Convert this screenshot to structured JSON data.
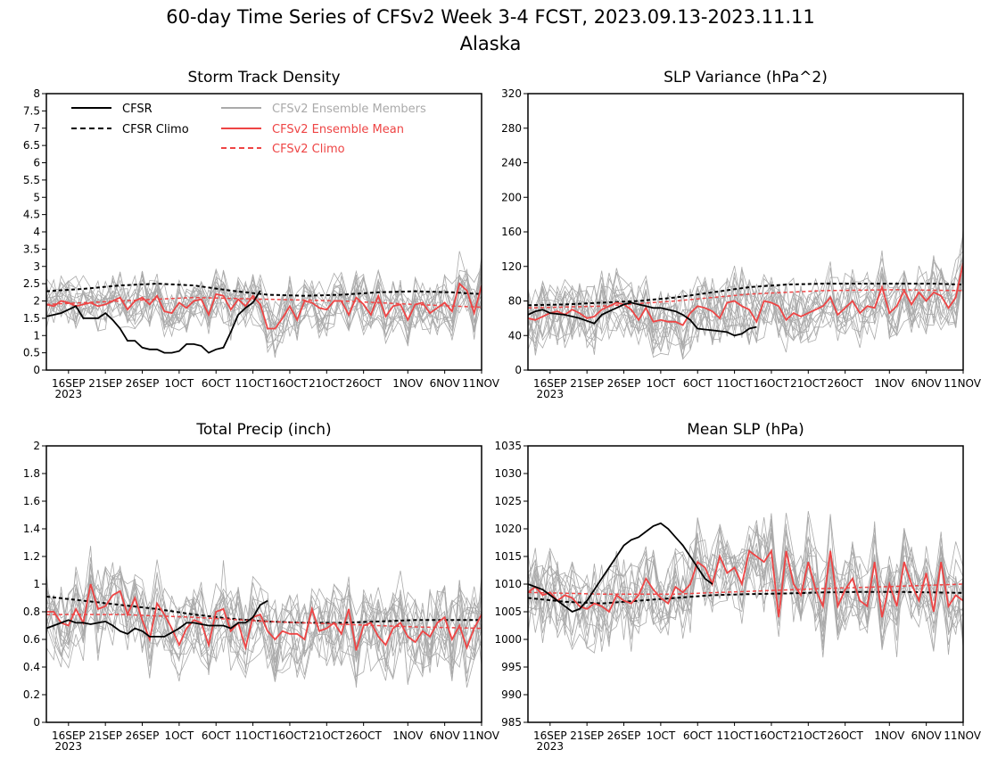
{
  "figure": {
    "title_line1": "60-day Time Series of CFSv2 Week 3-4 FCST, 2023.09.13-2023.11.11",
    "title_line2": "Alaska"
  },
  "colors": {
    "cfsr": "#000000",
    "ensemble_member": "#aaaaaa",
    "ensemble_mean": "#ee4444",
    "cfsv2_climo": "#ee4444"
  },
  "legend": {
    "cfsr": "CFSR",
    "cfsr_climo": "CFSR Climo",
    "members": "CFSv2 Ensemble Members",
    "mean": "CFSv2 Ensemble Mean",
    "cfsv2_climo": "CFSv2 Climo"
  },
  "x_ticks": [
    "16SEP",
    "21SEP",
    "26SEP",
    "1OCT",
    "6OCT",
    "11OCT",
    "16OCT",
    "21OCT",
    "26OCT",
    "1NOV",
    "6NOV",
    "11NOV"
  ],
  "x_tick_year": "2023",
  "chart_data": [
    {
      "type": "line",
      "title": "Storm Track Density",
      "x_days": [
        0,
        59
      ],
      "ylim": [
        0,
        8
      ],
      "yticks": [
        "0",
        "0.5",
        "1",
        "1.5",
        "2",
        "2.5",
        "3",
        "3.5",
        "4",
        "4.5",
        "5",
        "5.5",
        "6",
        "6.5",
        "7",
        "7.5",
        "8"
      ],
      "show_legend": true,
      "cfsr": [
        [
          0,
          1.55
        ],
        [
          1,
          1.6
        ],
        [
          2,
          1.65
        ],
        [
          3,
          1.75
        ],
        [
          4,
          1.85
        ],
        [
          5,
          1.5
        ],
        [
          6,
          1.5
        ],
        [
          7,
          1.5
        ],
        [
          8,
          1.65
        ],
        [
          9,
          1.45
        ],
        [
          10,
          1.2
        ],
        [
          11,
          0.85
        ],
        [
          12,
          0.85
        ],
        [
          13,
          0.65
        ],
        [
          14,
          0.6
        ],
        [
          15,
          0.6
        ],
        [
          16,
          0.5
        ],
        [
          17,
          0.5
        ],
        [
          18,
          0.55
        ],
        [
          19,
          0.75
        ],
        [
          20,
          0.75
        ],
        [
          21,
          0.7
        ],
        [
          22,
          0.5
        ],
        [
          23,
          0.6
        ],
        [
          24,
          0.65
        ],
        [
          25,
          1.1
        ],
        [
          26,
          1.6
        ],
        [
          27,
          1.8
        ],
        [
          28,
          1.95
        ],
        [
          29,
          2.3
        ]
      ],
      "cfsr_climo": [
        [
          0,
          2.28
        ],
        [
          5,
          2.35
        ],
        [
          10,
          2.45
        ],
        [
          15,
          2.5
        ],
        [
          20,
          2.45
        ],
        [
          25,
          2.3
        ],
        [
          30,
          2.18
        ],
        [
          35,
          2.15
        ],
        [
          40,
          2.18
        ],
        [
          45,
          2.25
        ],
        [
          50,
          2.28
        ],
        [
          55,
          2.25
        ],
        [
          59,
          2.2
        ]
      ],
      "cfsv2_climo": [
        [
          0,
          1.9
        ],
        [
          10,
          2.0
        ],
        [
          20,
          2.1
        ],
        [
          30,
          2.05
        ],
        [
          40,
          2.0
        ],
        [
          50,
          1.9
        ],
        [
          59,
          1.82
        ]
      ],
      "ensemble_mean": [
        1.9,
        1.85,
        2.0,
        1.95,
        1.85,
        1.9,
        1.95,
        1.85,
        1.9,
        2.0,
        2.1,
        1.75,
        2.0,
        2.1,
        1.9,
        2.15,
        1.7,
        1.65,
        1.95,
        1.8,
        2.0,
        2.05,
        1.6,
        2.2,
        2.15,
        1.75,
        2.05,
        1.85,
        2.15,
        1.9,
        1.2,
        1.2,
        1.5,
        1.85,
        1.45,
        2.0,
        1.95,
        1.8,
        1.75,
        2.0,
        2.0,
        1.6,
        2.1,
        1.9,
        1.6,
        2.15,
        1.55,
        1.85,
        1.9,
        1.45,
        1.9,
        1.95,
        1.65,
        1.8,
        1.95,
        1.7,
        2.5,
        2.3,
        1.65,
        2.45
      ],
      "member_spread": 0.7
    },
    {
      "type": "line",
      "title": "SLP Variance (hPa^2)",
      "x_days": [
        0,
        59
      ],
      "ylim": [
        0,
        320
      ],
      "yticks": [
        "0",
        "40",
        "80",
        "120",
        "160",
        "200",
        "240",
        "280",
        "320"
      ],
      "show_legend": false,
      "cfsr": [
        [
          0,
          64
        ],
        [
          1,
          68
        ],
        [
          2,
          70
        ],
        [
          3,
          66
        ],
        [
          4,
          65
        ],
        [
          5,
          64
        ],
        [
          6,
          62
        ],
        [
          7,
          60
        ],
        [
          8,
          57
        ],
        [
          9,
          54
        ],
        [
          10,
          64
        ],
        [
          11,
          68
        ],
        [
          12,
          72
        ],
        [
          13,
          76
        ],
        [
          14,
          78
        ],
        [
          15,
          76
        ],
        [
          16,
          74
        ],
        [
          17,
          72
        ],
        [
          18,
          72
        ],
        [
          19,
          70
        ],
        [
          20,
          68
        ],
        [
          21,
          64
        ],
        [
          22,
          58
        ],
        [
          23,
          48
        ],
        [
          24,
          47
        ],
        [
          25,
          46
        ],
        [
          26,
          45
        ],
        [
          27,
          44
        ],
        [
          28,
          40
        ],
        [
          29,
          42
        ],
        [
          30,
          48
        ],
        [
          31,
          50
        ]
      ],
      "cfsr_climo": [
        [
          0,
          75
        ],
        [
          5,
          76
        ],
        [
          10,
          78
        ],
        [
          15,
          80
        ],
        [
          20,
          84
        ],
        [
          25,
          90
        ],
        [
          30,
          96
        ],
        [
          35,
          99
        ],
        [
          40,
          100
        ],
        [
          45,
          100
        ],
        [
          50,
          100
        ],
        [
          55,
          100
        ],
        [
          59,
          99
        ]
      ],
      "cfsv2_climo": [
        [
          0,
          72
        ],
        [
          10,
          74
        ],
        [
          20,
          80
        ],
        [
          30,
          88
        ],
        [
          40,
          92
        ],
        [
          50,
          93
        ],
        [
          59,
          92
        ]
      ],
      "ensemble_mean": [
        60,
        58,
        62,
        66,
        68,
        64,
        70,
        66,
        60,
        62,
        70,
        74,
        78,
        76,
        70,
        58,
        72,
        56,
        58,
        56,
        56,
        52,
        66,
        74,
        72,
        68,
        60,
        78,
        80,
        74,
        70,
        56,
        80,
        78,
        74,
        58,
        66,
        62,
        66,
        70,
        74,
        84,
        64,
        72,
        80,
        66,
        74,
        72,
        96,
        66,
        74,
        92,
        76,
        90,
        80,
        90,
        86,
        72,
        84,
        124
      ],
      "member_spread": 35
    },
    {
      "type": "line",
      "title": "Total Precip (inch)",
      "x_days": [
        0,
        59
      ],
      "ylim": [
        0,
        2
      ],
      "yticks": [
        "0",
        "0.2",
        "0.4",
        "0.6",
        "0.8",
        "1",
        "1.2",
        "1.4",
        "1.6",
        "1.8",
        "2"
      ],
      "show_legend": false,
      "cfsr": [
        [
          0,
          0.68
        ],
        [
          1,
          0.7
        ],
        [
          2,
          0.72
        ],
        [
          3,
          0.74
        ],
        [
          4,
          0.72
        ],
        [
          5,
          0.72
        ],
        [
          6,
          0.71
        ],
        [
          7,
          0.72
        ],
        [
          8,
          0.73
        ],
        [
          9,
          0.7
        ],
        [
          10,
          0.66
        ],
        [
          11,
          0.64
        ],
        [
          12,
          0.68
        ],
        [
          13,
          0.66
        ],
        [
          14,
          0.62
        ],
        [
          15,
          0.62
        ],
        [
          16,
          0.62
        ],
        [
          17,
          0.65
        ],
        [
          18,
          0.68
        ],
        [
          19,
          0.72
        ],
        [
          20,
          0.72
        ],
        [
          21,
          0.71
        ],
        [
          22,
          0.7
        ],
        [
          23,
          0.7
        ],
        [
          24,
          0.7
        ],
        [
          25,
          0.68
        ],
        [
          26,
          0.72
        ],
        [
          27,
          0.72
        ],
        [
          28,
          0.76
        ],
        [
          29,
          0.85
        ],
        [
          30,
          0.88
        ]
      ],
      "cfsr_climo": [
        [
          0,
          0.91
        ],
        [
          5,
          0.88
        ],
        [
          10,
          0.85
        ],
        [
          15,
          0.82
        ],
        [
          20,
          0.78
        ],
        [
          25,
          0.75
        ],
        [
          30,
          0.73
        ],
        [
          35,
          0.72
        ],
        [
          40,
          0.72
        ],
        [
          45,
          0.73
        ],
        [
          50,
          0.74
        ],
        [
          55,
          0.74
        ],
        [
          59,
          0.74
        ]
      ],
      "cfsv2_climo": [
        [
          0,
          0.78
        ],
        [
          10,
          0.78
        ],
        [
          20,
          0.76
        ],
        [
          30,
          0.73
        ],
        [
          40,
          0.71
        ],
        [
          50,
          0.69
        ],
        [
          59,
          0.68
        ]
      ],
      "ensemble_mean": [
        0.8,
        0.8,
        0.72,
        0.7,
        0.82,
        0.72,
        1.0,
        0.82,
        0.84,
        0.92,
        0.95,
        0.78,
        0.9,
        0.74,
        0.6,
        0.86,
        0.78,
        0.68,
        0.56,
        0.68,
        0.74,
        0.72,
        0.56,
        0.8,
        0.82,
        0.66,
        0.72,
        0.54,
        0.76,
        0.78,
        0.66,
        0.6,
        0.66,
        0.64,
        0.64,
        0.6,
        0.82,
        0.66,
        0.68,
        0.72,
        0.64,
        0.82,
        0.52,
        0.7,
        0.72,
        0.62,
        0.56,
        0.68,
        0.72,
        0.62,
        0.58,
        0.66,
        0.62,
        0.72,
        0.76,
        0.6,
        0.7,
        0.54,
        0.68,
        0.78
      ],
      "member_spread": 0.28
    },
    {
      "type": "line",
      "title": "Mean SLP (hPa)",
      "x_days": [
        0,
        59
      ],
      "ylim": [
        985,
        1035
      ],
      "yticks": [
        "985",
        "990",
        "995",
        "1000",
        "1005",
        "1010",
        "1015",
        "1020",
        "1025",
        "1030",
        "1035"
      ],
      "show_legend": false,
      "cfsr": [
        [
          0,
          1010
        ],
        [
          1,
          1009.5
        ],
        [
          2,
          1009
        ],
        [
          3,
          1008
        ],
        [
          4,
          1007
        ],
        [
          5,
          1006
        ],
        [
          6,
          1005
        ],
        [
          7,
          1005.5
        ],
        [
          8,
          1007
        ],
        [
          9,
          1009
        ],
        [
          10,
          1011
        ],
        [
          11,
          1013
        ],
        [
          12,
          1015
        ],
        [
          13,
          1017
        ],
        [
          14,
          1018
        ],
        [
          15,
          1018.5
        ],
        [
          16,
          1019.5
        ],
        [
          17,
          1020.5
        ],
        [
          18,
          1021
        ],
        [
          19,
          1020
        ],
        [
          20,
          1018.5
        ],
        [
          21,
          1017
        ],
        [
          22,
          1015
        ],
        [
          23,
          1013
        ],
        [
          24,
          1011
        ],
        [
          25,
          1010
        ]
      ],
      "cfsr_climo": [
        [
          0,
          1007.5
        ],
        [
          5,
          1006.8
        ],
        [
          10,
          1006.5
        ],
        [
          15,
          1007
        ],
        [
          20,
          1007.5
        ],
        [
          25,
          1008
        ],
        [
          30,
          1008.2
        ],
        [
          35,
          1008.3
        ],
        [
          40,
          1008.5
        ],
        [
          45,
          1008.6
        ],
        [
          50,
          1008.6
        ],
        [
          55,
          1008.5
        ],
        [
          59,
          1008.4
        ]
      ],
      "cfsv2_climo": [
        [
          0,
          1008.5
        ],
        [
          10,
          1008.2
        ],
        [
          20,
          1008.2
        ],
        [
          30,
          1008.7
        ],
        [
          40,
          1009.2
        ],
        [
          50,
          1009.6
        ],
        [
          59,
          1010
        ]
      ],
      "ensemble_mean": [
        1008.5,
        1009.5,
        1008,
        1008.5,
        1007,
        1008,
        1007.5,
        1006,
        1005.5,
        1006.5,
        1006,
        1005,
        1008,
        1007,
        1006.5,
        1008,
        1011,
        1009,
        1007.5,
        1006.5,
        1009.5,
        1008.5,
        1010,
        1014,
        1013,
        1010,
        1015,
        1012,
        1013,
        1010,
        1016,
        1015,
        1014,
        1016,
        1004,
        1016,
        1010,
        1008,
        1014,
        1009,
        1006,
        1016,
        1006,
        1009,
        1011,
        1007,
        1006,
        1014,
        1004,
        1010,
        1006,
        1014,
        1010,
        1007,
        1012,
        1005,
        1014,
        1006,
        1008,
        1007
      ],
      "member_spread": 7
    }
  ]
}
